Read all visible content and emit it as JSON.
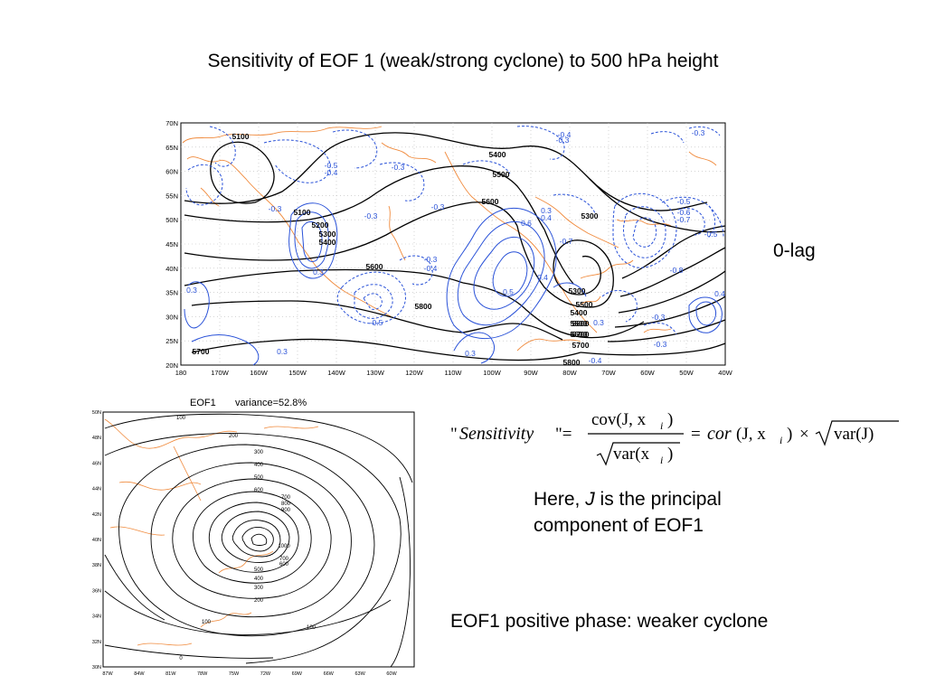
{
  "title": "Sensitivity of EOF 1 (weak/strong cyclone) to 500 hPa height",
  "lag_label": "0-lag",
  "map1": {
    "lat_labels": [
      "70N",
      "65N",
      "60N",
      "55N",
      "50N",
      "45N",
      "40N",
      "35N",
      "30N",
      "25N",
      "20N"
    ],
    "lon_labels": [
      "180",
      "170W",
      "160W",
      "150W",
      "140W",
      "130W",
      "120W",
      "110W",
      "100W",
      "90W",
      "80W",
      "70W",
      "60W",
      "50W",
      "40W"
    ],
    "height_labels": [
      "5100",
      "5400",
      "5500",
      "5600",
      "5300",
      "5100",
      "5200",
      "5300",
      "5400",
      "5600",
      "5500",
      "5600",
      "5700",
      "5800",
      "5300",
      "5400",
      "5500",
      "5600",
      "5700",
      "5800",
      "5700"
    ],
    "sensitivity_labels": [
      "-0.3",
      "-0.4",
      "-0.3",
      "-0.5",
      "-0.4",
      "-0.3",
      "-0.3",
      "-0.3",
      "-0.3",
      "0.3",
      "0.4",
      "0.6",
      "-0.7",
      "-0.5",
      "-0.6",
      "-0.7",
      "-0.8",
      "0.3",
      "-0.5",
      "0.5",
      "0.3",
      "0.3",
      "-0.4",
      "-0.3",
      "-0.5",
      "-0.3",
      "0.4",
      "0.3",
      "-0.3",
      "-0.4",
      "0.4",
      "0.3"
    ]
  },
  "map2": {
    "title_left": "EOF1",
    "title_right": "variance=52.8%",
    "lat_labels": [
      "50N",
      "48N",
      "46N",
      "44N",
      "42N",
      "40N",
      "38N",
      "36N",
      "34N",
      "32N",
      "30N"
    ],
    "lon_labels": [
      "87W",
      "84W",
      "81W",
      "78W",
      "75W",
      "72W",
      "69W",
      "66W",
      "63W",
      "60W"
    ],
    "contour_labels": [
      "100",
      "200",
      "300",
      "400",
      "500",
      "600",
      "700",
      "800",
      "900",
      "1000",
      "700",
      "600",
      "500",
      "400",
      "300",
      "200",
      "100",
      "100",
      "0"
    ]
  },
  "formula": {
    "quote_open": "\"",
    "lhs": "Sensitivity",
    "quote_close_eq": "\"=",
    "numerator": "cov(J, x",
    "numerator_sub": "i",
    "numerator_close": ")",
    "denominator": "var(x",
    "denominator_sub": "i",
    "denominator_close": ")",
    "eq2": "=",
    "cor": "cor",
    "cor_args": "(J, x",
    "cor_sub": "i",
    "cor_close": ")",
    "times": "×",
    "var_j": "var(J)"
  },
  "note": {
    "prefix": "Here,",
    "j": "J",
    "suffix": "is the principal",
    "line2": "component of EOF1"
  },
  "phase_text": "EOF1 positive phase: weaker cyclone",
  "colors": {
    "height_contour": "#000000",
    "positive_sensitivity": "#2a52d8",
    "negative_sensitivity": "#2a52d8",
    "coastline": "#f08a3c"
  }
}
